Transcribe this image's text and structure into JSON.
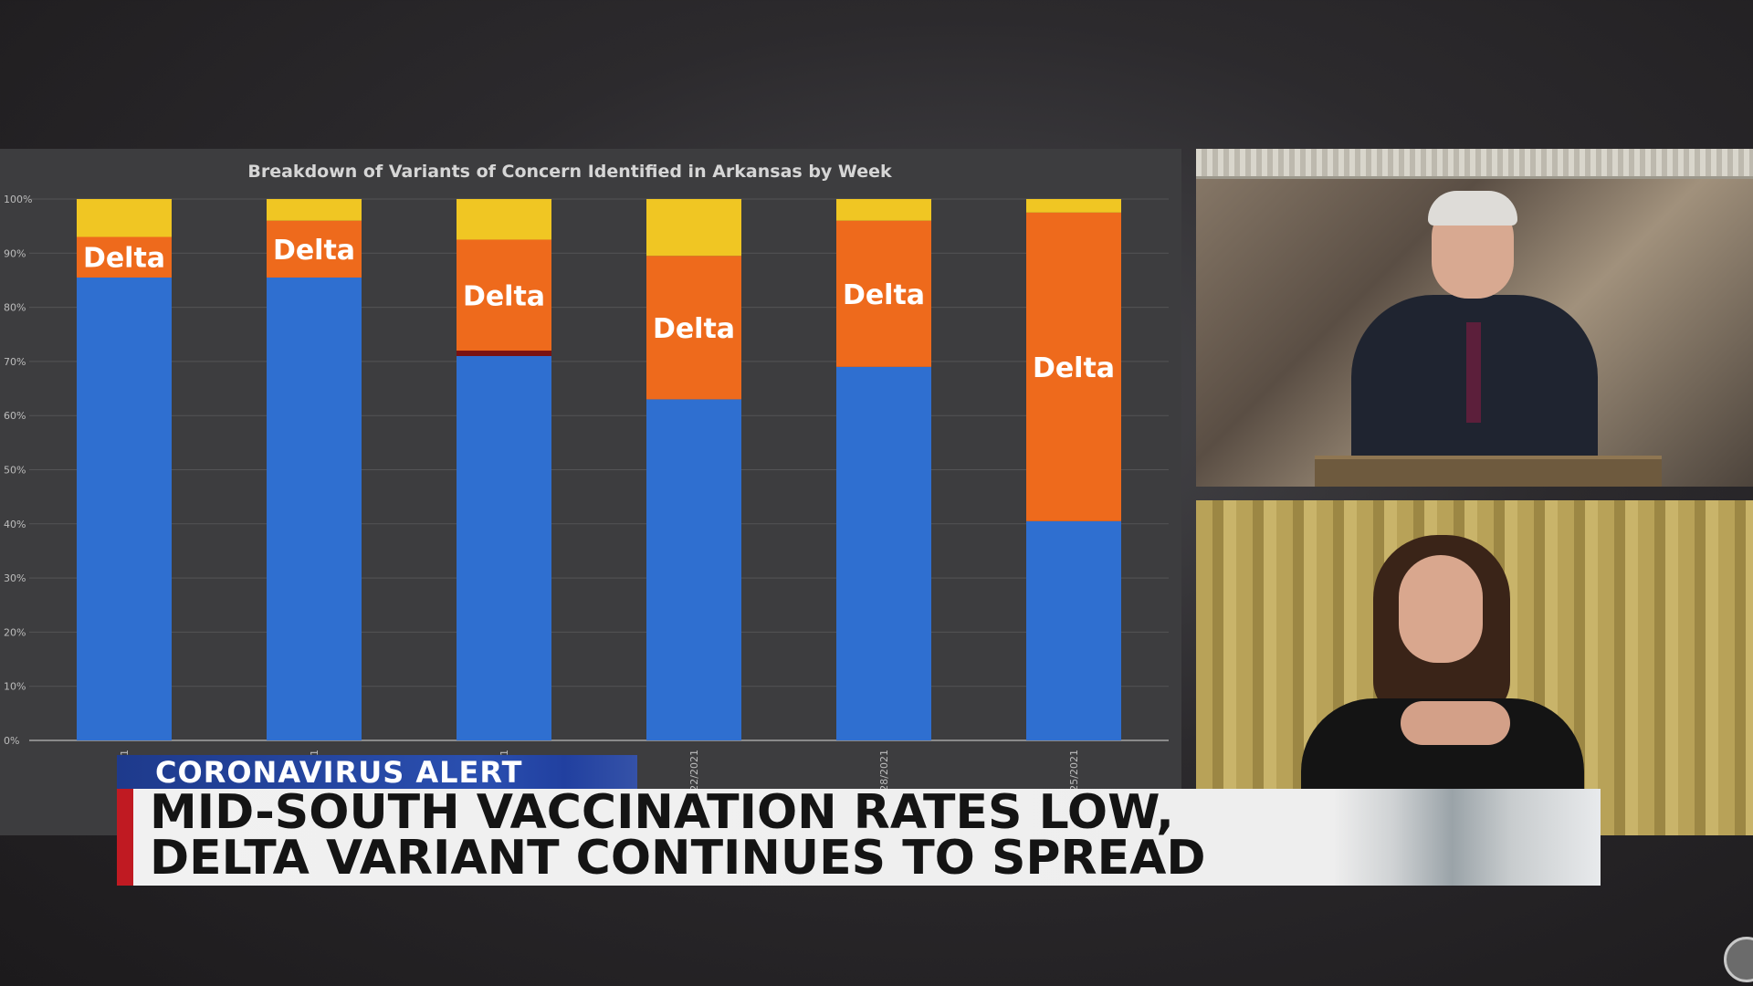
{
  "chart_data": {
    "type": "stacked-bar",
    "title": "Breakdown of Variants of Concern Identified in Arkansas by Week",
    "y_ticks": [
      "0%",
      "10%",
      "20%",
      "30%",
      "40%",
      "50%",
      "60%",
      "70%",
      "80%",
      "90%",
      "100%"
    ],
    "ylim": [
      0,
      100
    ],
    "categories": [
      "1",
      "1",
      "1",
      "22/2021",
      "28/2021",
      "25/2021"
    ],
    "series": [
      {
        "color": "#2f6fd0",
        "values": [
          85.5,
          85.5,
          71.0,
          63.0,
          69.0,
          40.5
        ]
      },
      {
        "color": "#7a1212",
        "values": [
          0,
          0,
          1.0,
          0,
          0,
          0
        ]
      },
      {
        "name": "Delta",
        "color": "#ee6a1c",
        "values": [
          7.5,
          10.5,
          20.5,
          26.5,
          27.0,
          57.0
        ]
      },
      {
        "color": "#f0c623",
        "values": [
          7.0,
          4.0,
          7.5,
          10.5,
          4.0,
          2.5
        ]
      }
    ],
    "bar_labels": [
      "Delta",
      "Delta",
      "Delta",
      "Delta",
      "Delta",
      "Delta"
    ],
    "grid": true,
    "legend": "none"
  },
  "banner": {
    "tag": "CORONAVIRUS ALERT",
    "headline_line1": "MID-SOUTH VACCINATION RATES LOW,",
    "headline_line2": "DELTA VARIANT CONTINUES TO SPREAD"
  }
}
